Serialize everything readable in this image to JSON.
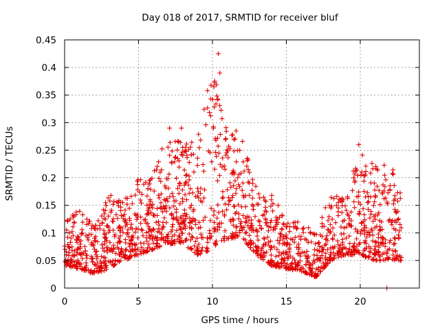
{
  "chart_data": {
    "type": "scatter",
    "title": "Day 018 of 2017, SRMTID for receiver bluf",
    "xlabel": "GPS time / hours",
    "ylabel": "SRMTID / TECUs",
    "xlim": [
      0,
      24
    ],
    "ylim": [
      0,
      0.45
    ],
    "xticks": [
      0,
      5,
      10,
      15,
      20
    ],
    "xtick_labels": [
      "0",
      "5",
      "10",
      "15",
      "20"
    ],
    "yticks": [
      0,
      0.05,
      0.1,
      0.15,
      0.2,
      0.25,
      0.3,
      0.35,
      0.4,
      0.45
    ],
    "ytick_labels": [
      "0",
      "0.05",
      "0.1",
      "0.15",
      "0.2",
      "0.25",
      "0.3",
      "0.35",
      "0.4",
      "0.45"
    ],
    "grid": true,
    "marker": "+",
    "color": "#e00000",
    "series": [
      {
        "name": "SRMTID",
        "note": "representative sample of the dense point cloud; envelope read from the plot",
        "envelope": {
          "x": [
            0,
            1,
            2,
            3,
            4,
            5,
            6,
            7,
            8,
            9,
            10,
            11,
            12,
            13,
            14,
            15,
            16,
            17,
            18,
            19,
            20,
            21,
            22,
            22.8
          ],
          "y_low": [
            0.04,
            0.035,
            0.025,
            0.035,
            0.05,
            0.06,
            0.07,
            0.08,
            0.08,
            0.06,
            0.07,
            0.09,
            0.09,
            0.06,
            0.04,
            0.035,
            0.03,
            0.02,
            0.05,
            0.06,
            0.06,
            0.05,
            0.05,
            0.05
          ],
          "y_high": [
            0.13,
            0.14,
            0.12,
            0.17,
            0.16,
            0.2,
            0.21,
            0.29,
            0.26,
            0.27,
            0.43,
            0.29,
            0.27,
            0.18,
            0.17,
            0.13,
            0.12,
            0.1,
            0.18,
            0.16,
            0.26,
            0.22,
            0.23,
            0.19
          ]
        },
        "peaks": [
          {
            "x": 10.4,
            "y": 0.425
          },
          {
            "x": 10.1,
            "y": 0.365
          },
          {
            "x": 10.5,
            "y": 0.39
          },
          {
            "x": 7.1,
            "y": 0.29
          },
          {
            "x": 7.9,
            "y": 0.29
          },
          {
            "x": 11.6,
            "y": 0.285
          },
          {
            "x": 19.9,
            "y": 0.26
          },
          {
            "x": 21.8,
            "y": 0.0
          }
        ]
      }
    ]
  }
}
